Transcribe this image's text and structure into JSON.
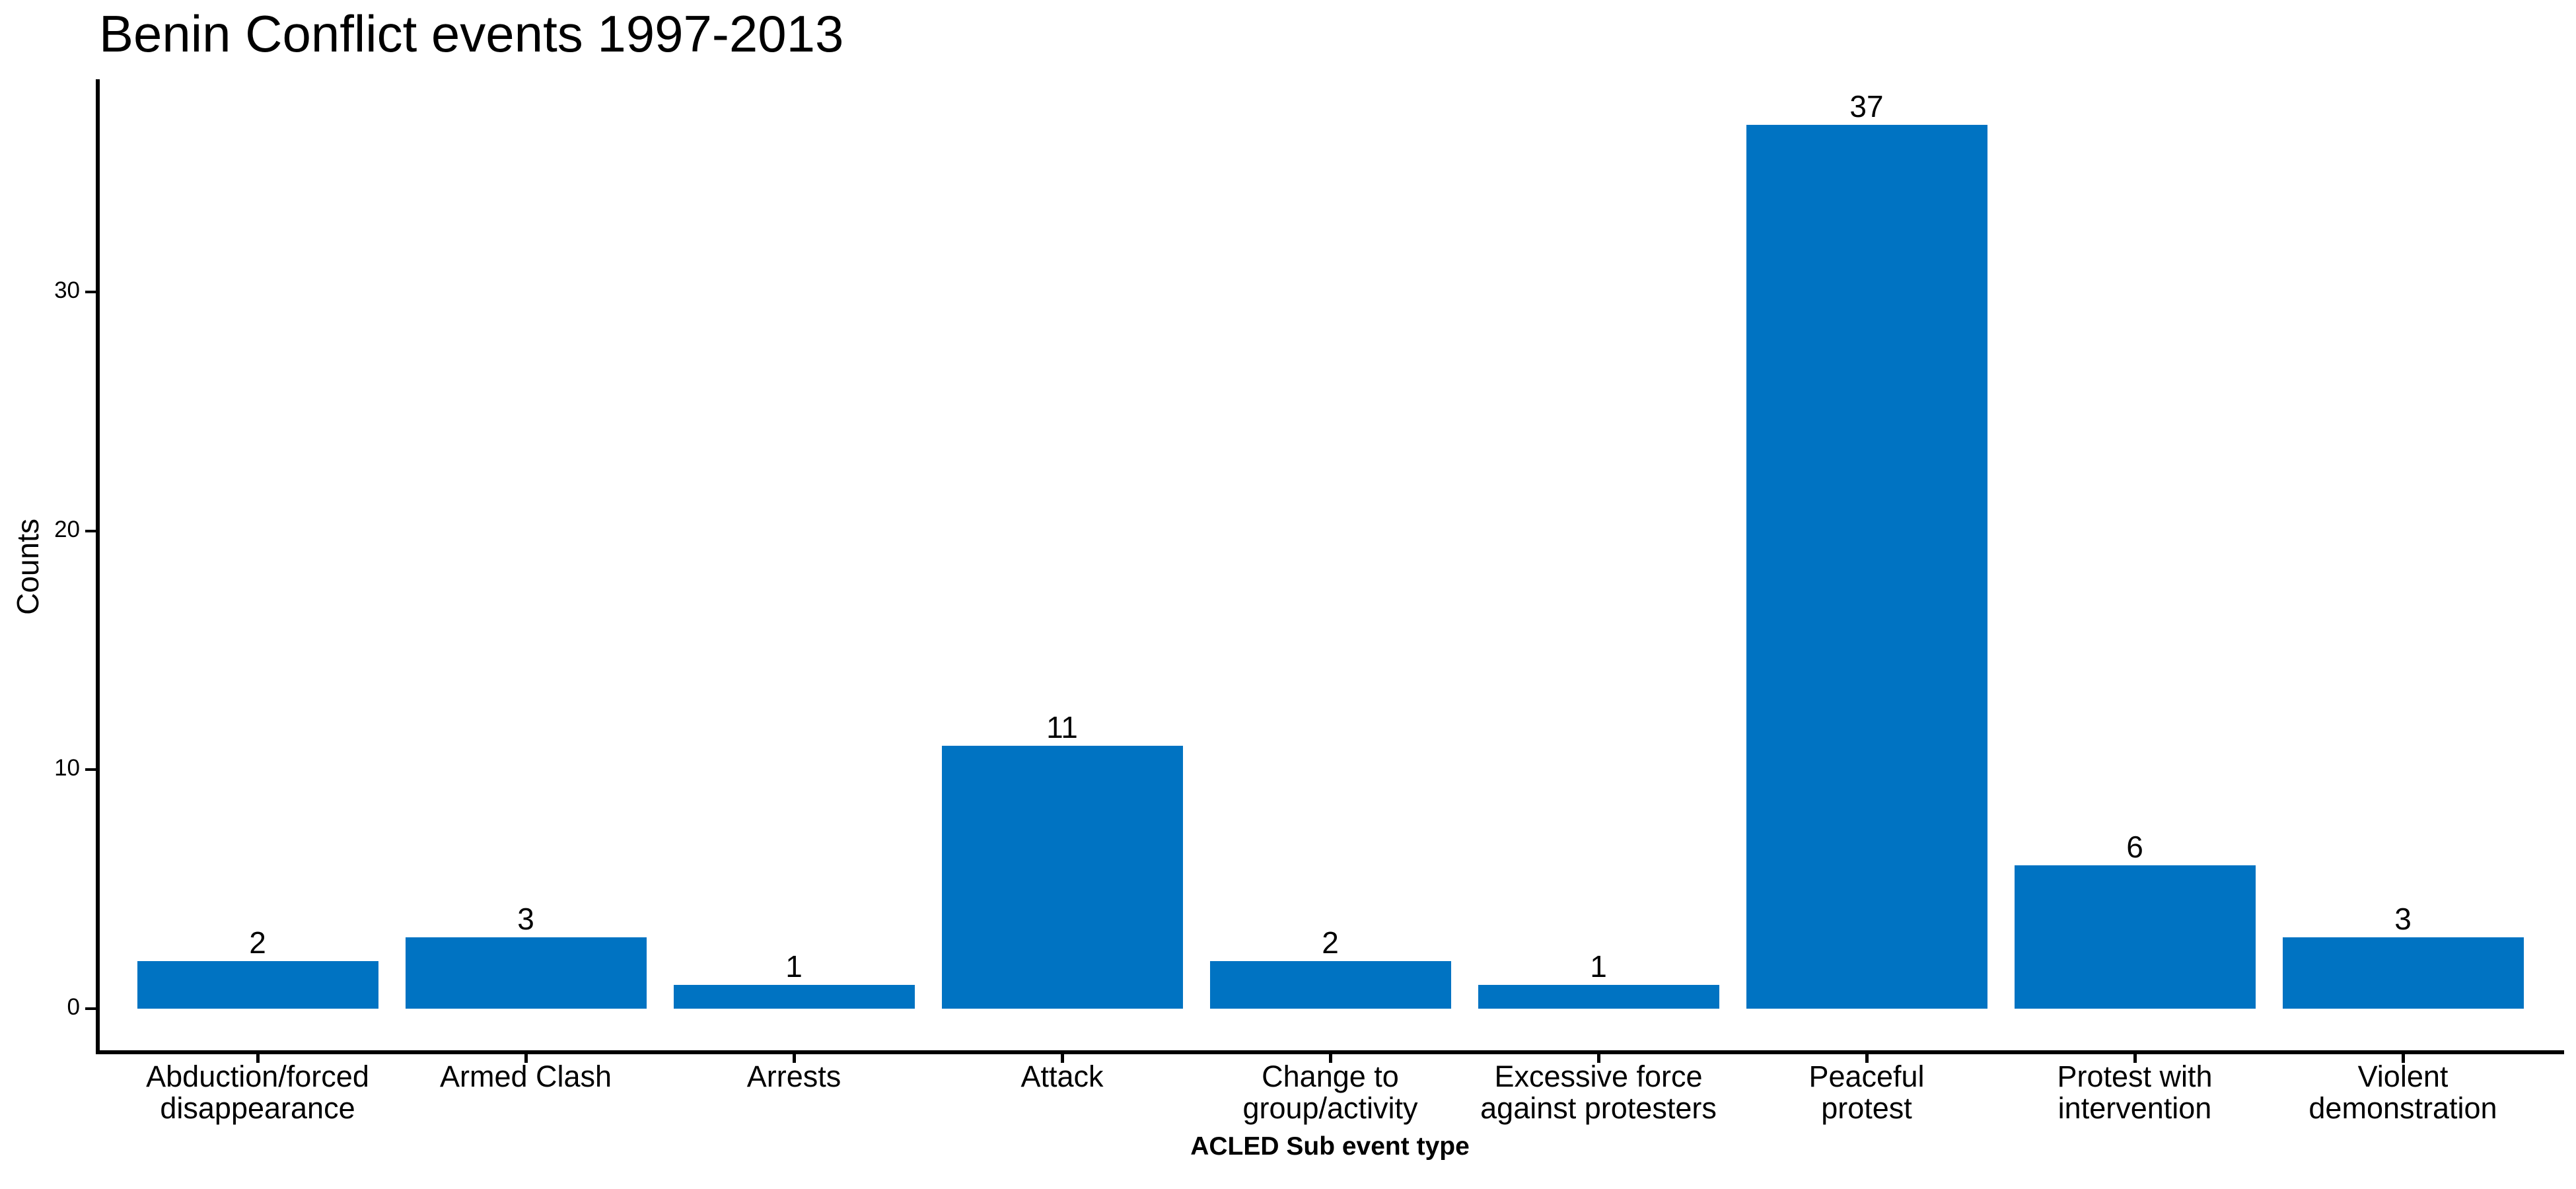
{
  "chart_data": {
    "type": "bar",
    "title": "Benin Conflict events 1997-2013",
    "xlabel": "ACLED Sub event type",
    "ylabel": "Counts",
    "categories": [
      "Abduction/forced\ndisappearance",
      "Armed Clash",
      "Arrests",
      "Attack",
      "Change to\ngroup/activity",
      "Excessive force\nagainst protesters",
      "Peaceful\nprotest",
      "Protest with\nintervention",
      "Violent\ndemonstration"
    ],
    "values": [
      2,
      3,
      1,
      11,
      2,
      1,
      37,
      6,
      3
    ],
    "show_value_labels": true,
    "yticks": [
      0,
      10,
      20,
      30
    ],
    "ylim": [
      -1.85,
      38.85
    ],
    "bar_color": "#0073C2",
    "axis_color": "#000000",
    "text_color": "#000000",
    "background_color": "#ffffff",
    "grid": false,
    "legend_position": "none"
  }
}
